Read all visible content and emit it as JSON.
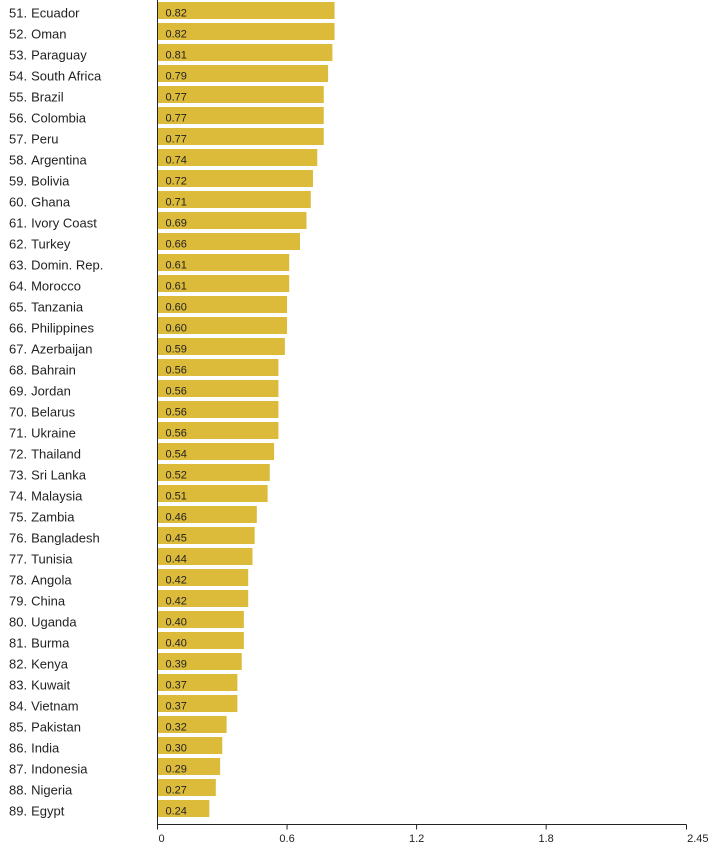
{
  "chart_data": {
    "type": "bar",
    "orientation": "horizontal",
    "bar_color": "#dcbb3b",
    "xlim": [
      0,
      2.45
    ],
    "xticks": [
      "0",
      "0.6",
      "1.2",
      "1.8",
      "2.45"
    ],
    "rows": [
      {
        "rank": "51.",
        "country": "Ecuador",
        "value": 0.82,
        "label": "0.82"
      },
      {
        "rank": "52.",
        "country": "Oman",
        "value": 0.82,
        "label": "0.82"
      },
      {
        "rank": "53.",
        "country": "Paraguay",
        "value": 0.81,
        "label": "0.81"
      },
      {
        "rank": "54.",
        "country": "South Africa",
        "value": 0.79,
        "label": "0.79"
      },
      {
        "rank": "55.",
        "country": "Brazil",
        "value": 0.77,
        "label": "0.77"
      },
      {
        "rank": "56.",
        "country": "Colombia",
        "value": 0.77,
        "label": "0.77"
      },
      {
        "rank": "57.",
        "country": "Peru",
        "value": 0.77,
        "label": "0.77"
      },
      {
        "rank": "58.",
        "country": "Argentina",
        "value": 0.74,
        "label": "0.74"
      },
      {
        "rank": "59.",
        "country": "Bolivia",
        "value": 0.72,
        "label": "0.72"
      },
      {
        "rank": "60.",
        "country": "Ghana",
        "value": 0.71,
        "label": "0.71"
      },
      {
        "rank": "61.",
        "country": "Ivory Coast",
        "value": 0.69,
        "label": "0.69"
      },
      {
        "rank": "62.",
        "country": "Turkey",
        "value": 0.66,
        "label": "0.66"
      },
      {
        "rank": "63.",
        "country": "Domin. Rep.",
        "value": 0.61,
        "label": "0.61"
      },
      {
        "rank": "64.",
        "country": "Morocco",
        "value": 0.61,
        "label": "0.61"
      },
      {
        "rank": "65.",
        "country": "Tanzania",
        "value": 0.6,
        "label": "0.60"
      },
      {
        "rank": "66.",
        "country": "Philippines",
        "value": 0.6,
        "label": "0.60"
      },
      {
        "rank": "67.",
        "country": "Azerbaijan",
        "value": 0.59,
        "label": "0.59"
      },
      {
        "rank": "68.",
        "country": "Bahrain",
        "value": 0.56,
        "label": "0.56"
      },
      {
        "rank": "69.",
        "country": "Jordan",
        "value": 0.56,
        "label": "0.56"
      },
      {
        "rank": "70.",
        "country": "Belarus",
        "value": 0.56,
        "label": "0.56"
      },
      {
        "rank": "71.",
        "country": "Ukraine",
        "value": 0.56,
        "label": "0.56"
      },
      {
        "rank": "72.",
        "country": "Thailand",
        "value": 0.54,
        "label": "0.54"
      },
      {
        "rank": "73.",
        "country": "Sri Lanka",
        "value": 0.52,
        "label": "0.52"
      },
      {
        "rank": "74.",
        "country": "Malaysia",
        "value": 0.51,
        "label": "0.51"
      },
      {
        "rank": "75.",
        "country": "Zambia",
        "value": 0.46,
        "label": "0.46"
      },
      {
        "rank": "76.",
        "country": "Bangladesh",
        "value": 0.45,
        "label": "0.45"
      },
      {
        "rank": "77.",
        "country": "Tunisia",
        "value": 0.44,
        "label": "0.44"
      },
      {
        "rank": "78.",
        "country": "Angola",
        "value": 0.42,
        "label": "0.42"
      },
      {
        "rank": "79.",
        "country": "China",
        "value": 0.42,
        "label": "0.42"
      },
      {
        "rank": "80.",
        "country": "Uganda",
        "value": 0.4,
        "label": "0.40"
      },
      {
        "rank": "81.",
        "country": "Burma",
        "value": 0.4,
        "label": "0.40"
      },
      {
        "rank": "82.",
        "country": "Kenya",
        "value": 0.39,
        "label": "0.39"
      },
      {
        "rank": "83.",
        "country": "Kuwait",
        "value": 0.37,
        "label": "0.37"
      },
      {
        "rank": "84.",
        "country": "Vietnam",
        "value": 0.37,
        "label": "0.37"
      },
      {
        "rank": "85.",
        "country": "Pakistan",
        "value": 0.32,
        "label": "0.32"
      },
      {
        "rank": "86.",
        "country": "India",
        "value": 0.3,
        "label": "0.30"
      },
      {
        "rank": "87.",
        "country": "Indonesia",
        "value": 0.29,
        "label": "0.29"
      },
      {
        "rank": "88.",
        "country": "Nigeria",
        "value": 0.27,
        "label": "0.27"
      },
      {
        "rank": "89.",
        "country": "Egypt",
        "value": 0.24,
        "label": "0.24"
      }
    ]
  }
}
